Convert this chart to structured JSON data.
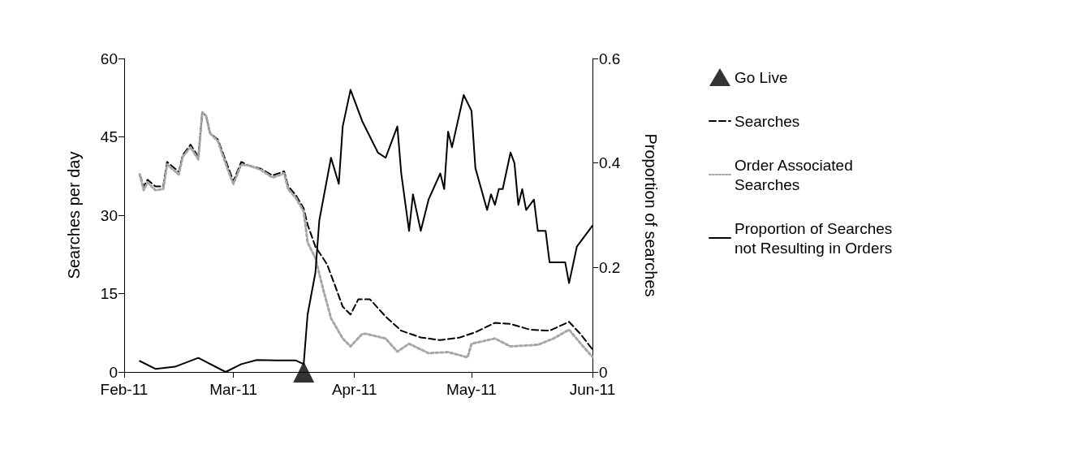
{
  "chart_data": {
    "type": "line",
    "ylabel": "Searches per day",
    "y2label": "Proportion of searches",
    "xlim": [
      "2011-02-01",
      "2011-06-01"
    ],
    "xticks": [
      {
        "value": "2011-02-01",
        "label": "Feb-11"
      },
      {
        "value": "2011-03-01",
        "label": "Mar-11"
      },
      {
        "value": "2011-04-01",
        "label": "Apr-11"
      },
      {
        "value": "2011-05-01",
        "label": "May-11"
      },
      {
        "value": "2011-06-01",
        "label": "Jun-11"
      }
    ],
    "ylim": [
      0,
      60
    ],
    "yticks": [
      0,
      15,
      30,
      45,
      60
    ],
    "y2lim": [
      0,
      0.6
    ],
    "y2ticks": [
      0,
      0.2,
      0.4,
      0.6
    ],
    "grid": false,
    "legend": "right",
    "series": [
      {
        "name": "Go Live",
        "type": "scatter",
        "marker": "triangle",
        "color": "#000000",
        "x": [
          "2011-03-19"
        ],
        "values": [
          0
        ]
      },
      {
        "name": "Searches",
        "type": "line",
        "line_style": "dashed",
        "color": "#000000",
        "x": [
          "2011-02-05",
          "2011-02-06",
          "2011-02-07",
          "2011-02-09",
          "2011-02-11",
          "2011-02-12",
          "2011-02-15",
          "2011-02-16",
          "2011-02-18",
          "2011-02-20",
          "2011-02-21",
          "2011-02-22",
          "2011-02-23",
          "2011-02-25",
          "2011-02-28",
          "2011-03-01",
          "2011-03-03",
          "2011-03-05",
          "2011-03-08",
          "2011-03-11",
          "2011-03-14",
          "2011-03-15",
          "2011-03-17",
          "2011-03-19",
          "2011-03-20",
          "2011-03-22",
          "2011-03-25",
          "2011-03-27",
          "2011-03-29",
          "2011-03-31",
          "2011-04-02",
          "2011-04-05",
          "2011-04-09",
          "2011-04-13",
          "2011-04-18",
          "2011-04-23",
          "2011-04-28",
          "2011-05-02",
          "2011-05-07",
          "2011-05-11",
          "2011-05-16",
          "2011-05-21",
          "2011-05-26",
          "2011-05-29",
          "2011-06-01"
        ],
        "values": [
          37.8,
          35.5,
          36.8,
          35.5,
          35.5,
          40.2,
          38.3,
          41.5,
          43.5,
          41.2,
          49.7,
          49,
          45.7,
          44.5,
          38.5,
          36.5,
          40.2,
          39.5,
          38.9,
          37.6,
          38.4,
          35.6,
          33.8,
          31.3,
          28.2,
          24,
          20.6,
          16.6,
          12.5,
          11,
          13.9,
          13.9,
          10.6,
          7.9,
          6.6,
          6.1,
          6.6,
          7.6,
          9.4,
          9.2,
          8.1,
          7.9,
          9.6,
          7.2,
          4.3
        ]
      },
      {
        "name": "Order Associated Searches",
        "type": "line",
        "line_style": "dotted",
        "color": "#a6a6a6",
        "x": [
          "2011-02-05",
          "2011-02-06",
          "2011-02-07",
          "2011-02-09",
          "2011-02-11",
          "2011-02-12",
          "2011-02-15",
          "2011-02-16",
          "2011-02-18",
          "2011-02-20",
          "2011-02-21",
          "2011-02-22",
          "2011-02-23",
          "2011-02-25",
          "2011-02-28",
          "2011-03-01",
          "2011-03-03",
          "2011-03-05",
          "2011-03-08",
          "2011-03-11",
          "2011-03-14",
          "2011-03-15",
          "2011-03-17",
          "2011-03-19",
          "2011-03-20",
          "2011-03-22",
          "2011-03-24",
          "2011-03-26",
          "2011-03-29",
          "2011-03-31",
          "2011-04-03",
          "2011-04-04",
          "2011-04-09",
          "2011-04-12",
          "2011-04-15",
          "2011-04-20",
          "2011-04-25",
          "2011-04-30",
          "2011-05-01",
          "2011-05-07",
          "2011-05-11",
          "2011-05-18",
          "2011-05-22",
          "2011-05-26",
          "2011-05-29",
          "2011-06-01"
        ],
        "values": [
          37.8,
          34.8,
          36.3,
          34.8,
          35,
          39.7,
          37.8,
          41.2,
          43,
          40.7,
          49.7,
          49,
          45.7,
          44.2,
          37.8,
          36,
          39.7,
          39.5,
          38.7,
          37.2,
          38,
          35,
          33.3,
          30.7,
          24.8,
          21.8,
          15.8,
          10.3,
          6.4,
          4.9,
          7.3,
          7.3,
          6.4,
          3.9,
          5.4,
          3.6,
          3.8,
          2.8,
          5.4,
          6.4,
          4.9,
          5.2,
          6.4,
          8.1,
          5.4,
          2.9
        ]
      },
      {
        "name": "Proportion of Searches not Resulting in Orders",
        "line_style": "solid",
        "axis": "y2",
        "color": "#000000",
        "x": [
          "2011-02-05",
          "2011-02-09",
          "2011-02-14",
          "2011-02-20",
          "2011-02-27",
          "2011-03-03",
          "2011-03-07",
          "2011-03-12",
          "2011-03-17",
          "2011-03-19",
          "2011-03-20",
          "2011-03-22",
          "2011-03-23",
          "2011-03-26",
          "2011-03-28",
          "2011-03-29",
          "2011-03-31",
          "2011-04-03",
          "2011-04-07",
          "2011-04-09",
          "2011-04-10",
          "2011-04-12",
          "2011-04-13",
          "2011-04-15",
          "2011-04-16",
          "2011-04-18",
          "2011-04-20",
          "2011-04-23",
          "2011-04-24",
          "2011-04-25",
          "2011-04-26",
          "2011-04-29",
          "2011-05-01",
          "2011-05-02",
          "2011-05-05",
          "2011-05-06",
          "2011-05-07",
          "2011-05-08",
          "2011-05-09",
          "2011-05-11",
          "2011-05-12",
          "2011-05-13",
          "2011-05-14",
          "2011-05-15",
          "2011-05-17",
          "2011-05-18",
          "2011-05-20",
          "2011-05-21",
          "2011-05-25",
          "2011-05-26",
          "2011-05-28",
          "2011-06-01"
        ],
        "values": [
          0.021,
          0.006,
          0.01,
          0.027,
          0,
          0.015,
          0.023,
          0.022,
          0.022,
          0.015,
          0.11,
          0.19,
          0.29,
          0.41,
          0.36,
          0.47,
          0.54,
          0.48,
          0.42,
          0.41,
          0.43,
          0.47,
          0.38,
          0.27,
          0.34,
          0.27,
          0.33,
          0.38,
          0.35,
          0.46,
          0.43,
          0.53,
          0.5,
          0.39,
          0.31,
          0.34,
          0.32,
          0.35,
          0.35,
          0.42,
          0.4,
          0.32,
          0.35,
          0.31,
          0.33,
          0.27,
          0.27,
          0.21,
          0.21,
          0.17,
          0.24,
          0.28
        ]
      }
    ]
  }
}
